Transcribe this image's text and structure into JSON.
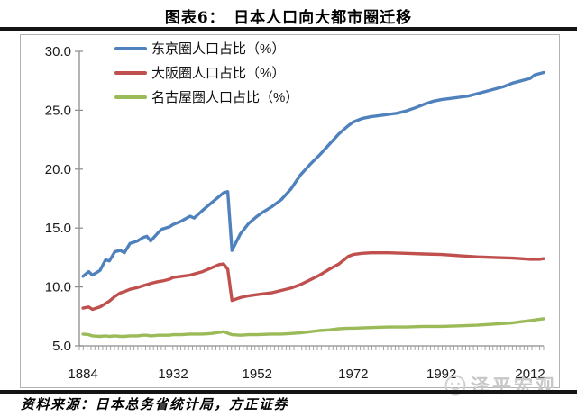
{
  "page": {
    "title": "图表6：　日本人口向大都市圈迁移",
    "source_text": "资料来源：日本总务省统计局，方正证券",
    "watermark": "泽平宏观"
  },
  "chart_data": {
    "type": "line",
    "title": "日本人口向大都市圈迁移",
    "figure_label": "图表6",
    "xlabel": "",
    "ylabel": "",
    "ylim": [
      5.0,
      30.0
    ],
    "ytick_labels": [
      "5.0",
      "10.0",
      "15.0",
      "20.0",
      "25.0",
      "30.0"
    ],
    "xtick_labels": [
      "1884",
      "1932",
      "1952",
      "1972",
      "1992",
      "2012"
    ],
    "x_axis_anchors": {
      "years": [
        1884,
        1932,
        1952,
        1972,
        1992,
        2012,
        2015
      ],
      "frac": [
        0.008,
        0.202,
        0.383,
        0.59,
        0.78,
        0.971,
        1.0
      ]
    },
    "grid": false,
    "legend_position": "top-left-inside",
    "axis_color": "#8c8c8c",
    "label_color": "#1a1a1a",
    "series": [
      {
        "id": "tokyo",
        "name": "东京圈人口占比（%）",
        "color": "#4F81BD",
        "points": [
          [
            1884,
            10.9
          ],
          [
            1887,
            11.3
          ],
          [
            1889,
            11.0
          ],
          [
            1893,
            11.4
          ],
          [
            1896,
            12.3
          ],
          [
            1898,
            12.2
          ],
          [
            1901,
            13.0
          ],
          [
            1904,
            13.1
          ],
          [
            1906,
            12.9
          ],
          [
            1909,
            13.7
          ],
          [
            1913,
            13.9
          ],
          [
            1916,
            14.2
          ],
          [
            1918,
            14.3
          ],
          [
            1920,
            13.9
          ],
          [
            1924,
            14.6
          ],
          [
            1926,
            14.9
          ],
          [
            1930,
            15.1
          ],
          [
            1932,
            15.3
          ],
          [
            1934,
            15.6
          ],
          [
            1936,
            16.0
          ],
          [
            1937,
            15.85
          ],
          [
            1939,
            16.5
          ],
          [
            1941,
            17.1
          ],
          [
            1943,
            17.7
          ],
          [
            1944,
            18.0
          ],
          [
            1945,
            18.1
          ],
          [
            1946,
            13.1
          ],
          [
            1948,
            14.5
          ],
          [
            1950,
            15.4
          ],
          [
            1952,
            16.0
          ],
          [
            1953,
            16.3
          ],
          [
            1955,
            16.8
          ],
          [
            1957,
            17.4
          ],
          [
            1959,
            18.3
          ],
          [
            1961,
            19.5
          ],
          [
            1963,
            20.4
          ],
          [
            1965,
            21.2
          ],
          [
            1967,
            22.1
          ],
          [
            1969,
            23.0
          ],
          [
            1971,
            23.7
          ],
          [
            1972,
            24.0
          ],
          [
            1974,
            24.3
          ],
          [
            1976,
            24.45
          ],
          [
            1978,
            24.55
          ],
          [
            1980,
            24.65
          ],
          [
            1982,
            24.75
          ],
          [
            1984,
            24.95
          ],
          [
            1986,
            25.2
          ],
          [
            1988,
            25.5
          ],
          [
            1990,
            25.75
          ],
          [
            1992,
            25.9
          ],
          [
            1994,
            26.0
          ],
          [
            1996,
            26.1
          ],
          [
            1998,
            26.2
          ],
          [
            2000,
            26.4
          ],
          [
            2002,
            26.6
          ],
          [
            2004,
            26.8
          ],
          [
            2006,
            27.0
          ],
          [
            2008,
            27.3
          ],
          [
            2010,
            27.5
          ],
          [
            2011,
            27.6
          ],
          [
            2012,
            27.7
          ],
          [
            2013,
            28.0
          ],
          [
            2014,
            28.1
          ],
          [
            2015,
            28.2
          ]
        ]
      },
      {
        "id": "osaka",
        "name": "大阪圈人口占比（%）",
        "color": "#C0504D",
        "points": [
          [
            1884,
            8.2
          ],
          [
            1887,
            8.3
          ],
          [
            1889,
            8.1
          ],
          [
            1893,
            8.3
          ],
          [
            1896,
            8.6
          ],
          [
            1898,
            8.8
          ],
          [
            1901,
            9.2
          ],
          [
            1904,
            9.5
          ],
          [
            1906,
            9.6
          ],
          [
            1909,
            9.8
          ],
          [
            1913,
            9.95
          ],
          [
            1916,
            10.1
          ],
          [
            1918,
            10.2
          ],
          [
            1920,
            10.3
          ],
          [
            1924,
            10.45
          ],
          [
            1926,
            10.5
          ],
          [
            1930,
            10.65
          ],
          [
            1932,
            10.8
          ],
          [
            1934,
            10.9
          ],
          [
            1936,
            11.0
          ],
          [
            1939,
            11.3
          ],
          [
            1941,
            11.6
          ],
          [
            1943,
            11.9
          ],
          [
            1944,
            11.95
          ],
          [
            1945,
            11.5
          ],
          [
            1946,
            8.85
          ],
          [
            1948,
            9.1
          ],
          [
            1950,
            9.25
          ],
          [
            1952,
            9.35
          ],
          [
            1955,
            9.5
          ],
          [
            1957,
            9.7
          ],
          [
            1959,
            9.9
          ],
          [
            1961,
            10.2
          ],
          [
            1963,
            10.6
          ],
          [
            1965,
            11.0
          ],
          [
            1967,
            11.5
          ],
          [
            1969,
            11.95
          ],
          [
            1971,
            12.6
          ],
          [
            1972,
            12.75
          ],
          [
            1974,
            12.85
          ],
          [
            1976,
            12.9
          ],
          [
            1980,
            12.9
          ],
          [
            1984,
            12.85
          ],
          [
            1988,
            12.8
          ],
          [
            1992,
            12.75
          ],
          [
            1996,
            12.65
          ],
          [
            2000,
            12.55
          ],
          [
            2004,
            12.5
          ],
          [
            2008,
            12.45
          ],
          [
            2010,
            12.4
          ],
          [
            2012,
            12.35
          ],
          [
            2014,
            12.35
          ],
          [
            2015,
            12.4
          ]
        ]
      },
      {
        "id": "nagoya",
        "name": "名古屋圈人口占比（%）",
        "color": "#9BBB59",
        "points": [
          [
            1884,
            6.0
          ],
          [
            1887,
            5.95
          ],
          [
            1889,
            5.85
          ],
          [
            1893,
            5.8
          ],
          [
            1896,
            5.85
          ],
          [
            1898,
            5.8
          ],
          [
            1901,
            5.85
          ],
          [
            1904,
            5.8
          ],
          [
            1906,
            5.8
          ],
          [
            1909,
            5.85
          ],
          [
            1913,
            5.85
          ],
          [
            1916,
            5.9
          ],
          [
            1918,
            5.9
          ],
          [
            1920,
            5.85
          ],
          [
            1924,
            5.9
          ],
          [
            1926,
            5.9
          ],
          [
            1930,
            5.9
          ],
          [
            1932,
            5.95
          ],
          [
            1934,
            5.95
          ],
          [
            1936,
            6.0
          ],
          [
            1939,
            6.0
          ],
          [
            1941,
            6.05
          ],
          [
            1943,
            6.15
          ],
          [
            1944,
            6.2
          ],
          [
            1946,
            5.95
          ],
          [
            1948,
            5.9
          ],
          [
            1950,
            5.95
          ],
          [
            1952,
            5.95
          ],
          [
            1955,
            6.0
          ],
          [
            1957,
            6.0
          ],
          [
            1959,
            6.05
          ],
          [
            1961,
            6.1
          ],
          [
            1963,
            6.2
          ],
          [
            1965,
            6.3
          ],
          [
            1967,
            6.35
          ],
          [
            1969,
            6.45
          ],
          [
            1971,
            6.5
          ],
          [
            1972,
            6.5
          ],
          [
            1976,
            6.55
          ],
          [
            1980,
            6.6
          ],
          [
            1984,
            6.6
          ],
          [
            1988,
            6.65
          ],
          [
            1992,
            6.65
          ],
          [
            1996,
            6.7
          ],
          [
            2000,
            6.75
          ],
          [
            2004,
            6.85
          ],
          [
            2008,
            6.95
          ],
          [
            2010,
            7.05
          ],
          [
            2012,
            7.15
          ],
          [
            2014,
            7.25
          ],
          [
            2015,
            7.3
          ]
        ]
      }
    ]
  }
}
